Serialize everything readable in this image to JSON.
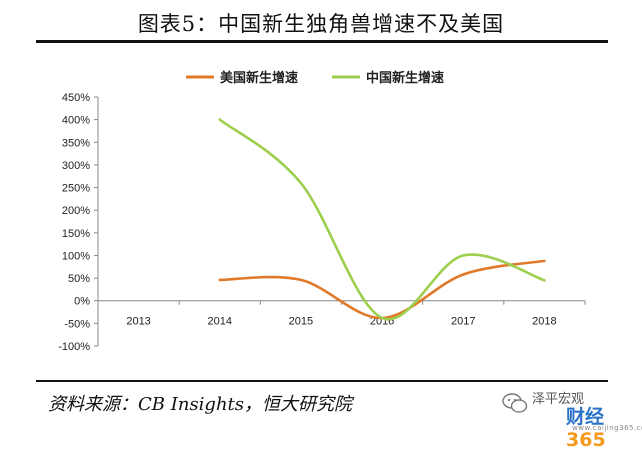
{
  "figure": {
    "title": "图表5：中国新生独角兽增速不及美国",
    "source": "资料来源：CB Insights，恒大研究院"
  },
  "watermark": {
    "account": "泽平宏观",
    "brand_text": "财经",
    "brand_number": "365",
    "url": "www.caijing365.com",
    "icon": "wechat-icon"
  },
  "chart_data": {
    "type": "line",
    "categories": [
      "2013",
      "2014",
      "2015",
      "2016",
      "2017",
      "2018"
    ],
    "series": [
      {
        "name": "美国新生增速",
        "color": "#e07a2a",
        "values": [
          null,
          46,
          46,
          -38,
          58,
          88
        ]
      },
      {
        "name": "中国新生增速",
        "color": "#9ccf4e",
        "values": [
          null,
          400,
          260,
          -38,
          100,
          45
        ]
      }
    ],
    "ylim": [
      -100,
      450
    ],
    "yticks": [
      -100,
      -50,
      0,
      50,
      100,
      150,
      200,
      250,
      300,
      350,
      400,
      450
    ],
    "ytick_labels": [
      "-100%",
      "-50%",
      "0%",
      "50%",
      "100%",
      "150%",
      "200%",
      "250%",
      "300%",
      "350%",
      "400%",
      "450%"
    ],
    "smooth": true,
    "legend": "top-center",
    "grid": false
  }
}
